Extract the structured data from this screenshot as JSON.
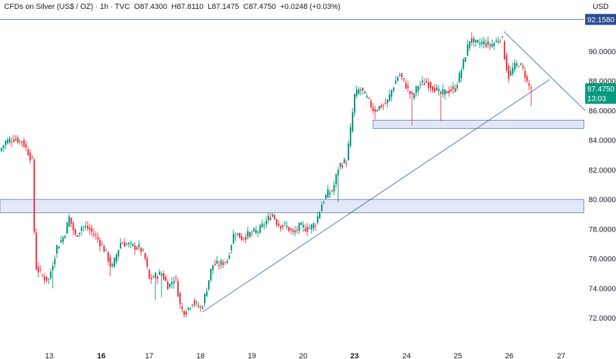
{
  "header": {
    "symbol": "CFDs on Silver (US$ / OZ)",
    "interval": "1h",
    "source": "TVC",
    "open": "O87.4300",
    "high": "H87.8110",
    "low": "L87.1475",
    "close": "C87.4750",
    "change": "+0.0248 (+0.03%)"
  },
  "currency": "USD",
  "colors": {
    "up": "#089981",
    "down": "#f23645",
    "line": "#4a6fb5",
    "zone": "#e3e8f8",
    "tag_blue": "#2a4d8f",
    "tag_green": "#089981"
  },
  "chart_data": {
    "type": "candlestick",
    "ylim": [
      71.2,
      93.8
    ],
    "yticks": [
      "90.0000",
      "88.0000",
      "86.0000",
      "84.0000",
      "82.0000",
      "80.0000",
      "78.0000",
      "76.0000",
      "74.0000",
      "72.0000"
    ],
    "ytick_values": [
      90,
      88,
      86,
      84,
      82,
      80,
      78,
      76,
      74,
      72
    ],
    "xlabels": [
      {
        "label": "13",
        "x": 72,
        "bold": false
      },
      {
        "label": "16",
        "x": 148,
        "bold": true
      },
      {
        "label": "17",
        "x": 218,
        "bold": false
      },
      {
        "label": "18",
        "x": 293,
        "bold": false
      },
      {
        "label": "19",
        "x": 368,
        "bold": false
      },
      {
        "label": "20",
        "x": 443,
        "bold": false
      },
      {
        "label": "23",
        "x": 518,
        "bold": true
      },
      {
        "label": "24",
        "x": 594,
        "bold": false
      },
      {
        "label": "25",
        "x": 669,
        "bold": false
      },
      {
        "label": "26",
        "x": 744,
        "bold": false
      },
      {
        "label": "27",
        "x": 820,
        "bold": false
      }
    ],
    "resistance_level": {
      "value": 92.158,
      "label": "92.1580"
    },
    "last_price": {
      "value": 87.475,
      "label": "87.4750",
      "countdown": "13:03"
    },
    "zones": [
      {
        "low": 79.1,
        "high": 80.0
      },
      {
        "low": 84.8,
        "high": 85.35,
        "x_start": 545
      }
    ],
    "trendlines": [
      {
        "x1": 296,
        "y1": 72.4,
        "x2": 803,
        "y2": 88.1
      },
      {
        "x1": 736,
        "y1": 91.35,
        "x2": 855,
        "y2": 86.0
      }
    ],
    "anchors": [
      {
        "x": 0,
        "p": 83.2
      },
      {
        "x": 10,
        "p": 83.9
      },
      {
        "x": 22,
        "p": 84.1
      },
      {
        "x": 35,
        "p": 83.9
      },
      {
        "x": 45,
        "p": 83.0
      },
      {
        "x": 50,
        "p": 82.5
      },
      {
        "x": 53,
        "p": 75.5
      },
      {
        "x": 58,
        "p": 75.2
      },
      {
        "x": 66,
        "p": 74.7
      },
      {
        "x": 73,
        "p": 74.6
      },
      {
        "x": 85,
        "p": 76.8
      },
      {
        "x": 96,
        "p": 77.6
      },
      {
        "x": 103,
        "p": 78.8
      },
      {
        "x": 112,
        "p": 77.5
      },
      {
        "x": 122,
        "p": 78.2
      },
      {
        "x": 132,
        "p": 78.0
      },
      {
        "x": 145,
        "p": 77.3
      },
      {
        "x": 157,
        "p": 76.4
      },
      {
        "x": 165,
        "p": 75.3
      },
      {
        "x": 178,
        "p": 77.1
      },
      {
        "x": 192,
        "p": 76.9
      },
      {
        "x": 206,
        "p": 76.7
      },
      {
        "x": 213,
        "p": 76.2
      },
      {
        "x": 220,
        "p": 74.6
      },
      {
        "x": 228,
        "p": 74.8
      },
      {
        "x": 238,
        "p": 75.0
      },
      {
        "x": 248,
        "p": 74.1
      },
      {
        "x": 258,
        "p": 74.8
      },
      {
        "x": 266,
        "p": 72.6
      },
      {
        "x": 273,
        "p": 72.4
      },
      {
        "x": 283,
        "p": 73.1
      },
      {
        "x": 296,
        "p": 72.6
      },
      {
        "x": 303,
        "p": 73.8
      },
      {
        "x": 312,
        "p": 75.6
      },
      {
        "x": 322,
        "p": 75.6
      },
      {
        "x": 334,
        "p": 75.9
      },
      {
        "x": 344,
        "p": 77.8
      },
      {
        "x": 355,
        "p": 77.4
      },
      {
        "x": 368,
        "p": 77.7
      },
      {
        "x": 380,
        "p": 77.9
      },
      {
        "x": 392,
        "p": 78.6
      },
      {
        "x": 400,
        "p": 79.0
      },
      {
        "x": 408,
        "p": 78.3
      },
      {
        "x": 420,
        "p": 78.2
      },
      {
        "x": 430,
        "p": 77.7
      },
      {
        "x": 440,
        "p": 78.2
      },
      {
        "x": 452,
        "p": 78.0
      },
      {
        "x": 463,
        "p": 78.4
      },
      {
        "x": 472,
        "p": 79.7
      },
      {
        "x": 480,
        "p": 80.4
      },
      {
        "x": 488,
        "p": 80.6
      },
      {
        "x": 497,
        "p": 82.3
      },
      {
        "x": 508,
        "p": 82.6
      },
      {
        "x": 513,
        "p": 84.3
      },
      {
        "x": 520,
        "p": 87.0
      },
      {
        "x": 528,
        "p": 87.5
      },
      {
        "x": 540,
        "p": 86.7
      },
      {
        "x": 548,
        "p": 86.0
      },
      {
        "x": 558,
        "p": 86.3
      },
      {
        "x": 567,
        "p": 86.5
      },
      {
        "x": 575,
        "p": 87.5
      },
      {
        "x": 585,
        "p": 88.5
      },
      {
        "x": 596,
        "p": 87.6
      },
      {
        "x": 604,
        "p": 86.9
      },
      {
        "x": 614,
        "p": 87.8
      },
      {
        "x": 625,
        "p": 87.9
      },
      {
        "x": 637,
        "p": 87.5
      },
      {
        "x": 645,
        "p": 87.1
      },
      {
        "x": 655,
        "p": 87.3
      },
      {
        "x": 667,
        "p": 87.5
      },
      {
        "x": 675,
        "p": 88.6
      },
      {
        "x": 688,
        "p": 90.8
      },
      {
        "x": 698,
        "p": 90.5
      },
      {
        "x": 708,
        "p": 90.6
      },
      {
        "x": 718,
        "p": 90.4
      },
      {
        "x": 728,
        "p": 90.7
      },
      {
        "x": 735,
        "p": 91.1
      },
      {
        "x": 740,
        "p": 89.3
      },
      {
        "x": 745,
        "p": 88.3
      },
      {
        "x": 752,
        "p": 88.9
      },
      {
        "x": 760,
        "p": 89.2
      },
      {
        "x": 768,
        "p": 88.6
      },
      {
        "x": 772,
        "p": 87.9
      },
      {
        "x": 777,
        "p": 87.5
      }
    ],
    "spikes": [
      {
        "x": 76,
        "p": 74.0
      },
      {
        "x": 161,
        "p": 74.8
      },
      {
        "x": 226,
        "p": 73.2
      },
      {
        "x": 236,
        "p": 73.4
      },
      {
        "x": 268,
        "p": 72.0
      },
      {
        "x": 492,
        "p": 79.8
      },
      {
        "x": 548,
        "p": 85.4
      },
      {
        "x": 600,
        "p": 85.0
      },
      {
        "x": 643,
        "p": 85.3
      },
      {
        "x": 689,
        "p": 91.3
      },
      {
        "x": 775,
        "p": 86.3
      }
    ]
  }
}
